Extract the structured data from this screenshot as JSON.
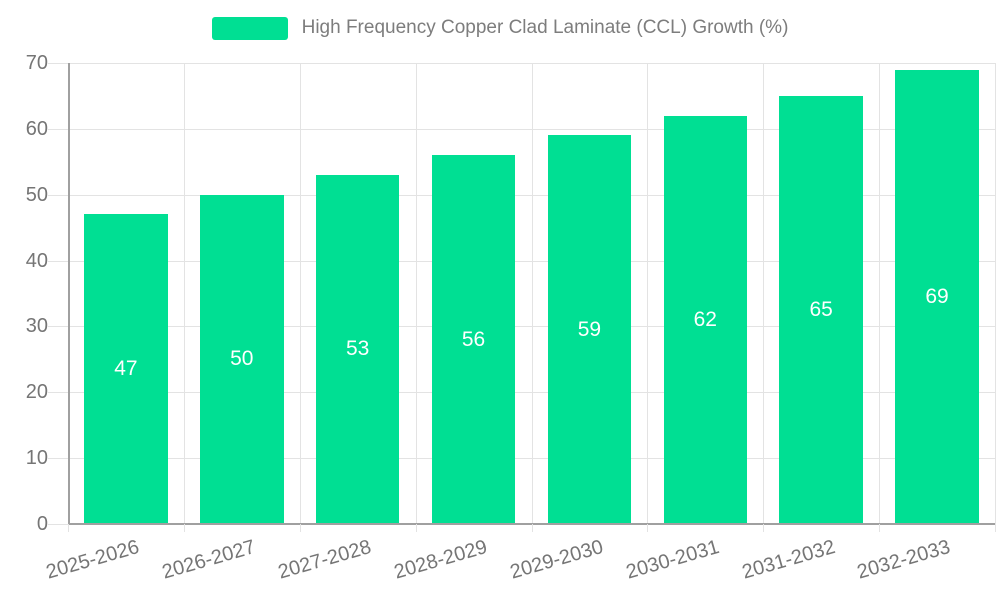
{
  "legend": {
    "label": "High Frequency Copper Clad Laminate (CCL) Growth (%)"
  },
  "chart_data": {
    "type": "bar",
    "title": "High Frequency Copper Clad Laminate (CCL) Growth (%)",
    "categories": [
      "2025-2026",
      "2026-2027",
      "2027-2028",
      "2028-2029",
      "2029-2030",
      "2030-2031",
      "2031-2032",
      "2032-2033"
    ],
    "values": [
      47,
      50,
      53,
      56,
      59,
      62,
      65,
      69
    ],
    "xlabel": "",
    "ylabel": "",
    "ylim": [
      0,
      70
    ],
    "yticks": [
      0,
      10,
      20,
      30,
      40,
      50,
      60,
      70
    ],
    "grid": true,
    "legend_position": "top",
    "value_labels": "centered-inside-bars",
    "colors": {
      "bar": "#00DF93",
      "grid": "#E3E3E3",
      "axis": "#A0A0A0",
      "tick_label": "#757575",
      "title": "#7D7D7D",
      "value_label": "#FFFFFF",
      "background": "#FFFFFF"
    }
  }
}
